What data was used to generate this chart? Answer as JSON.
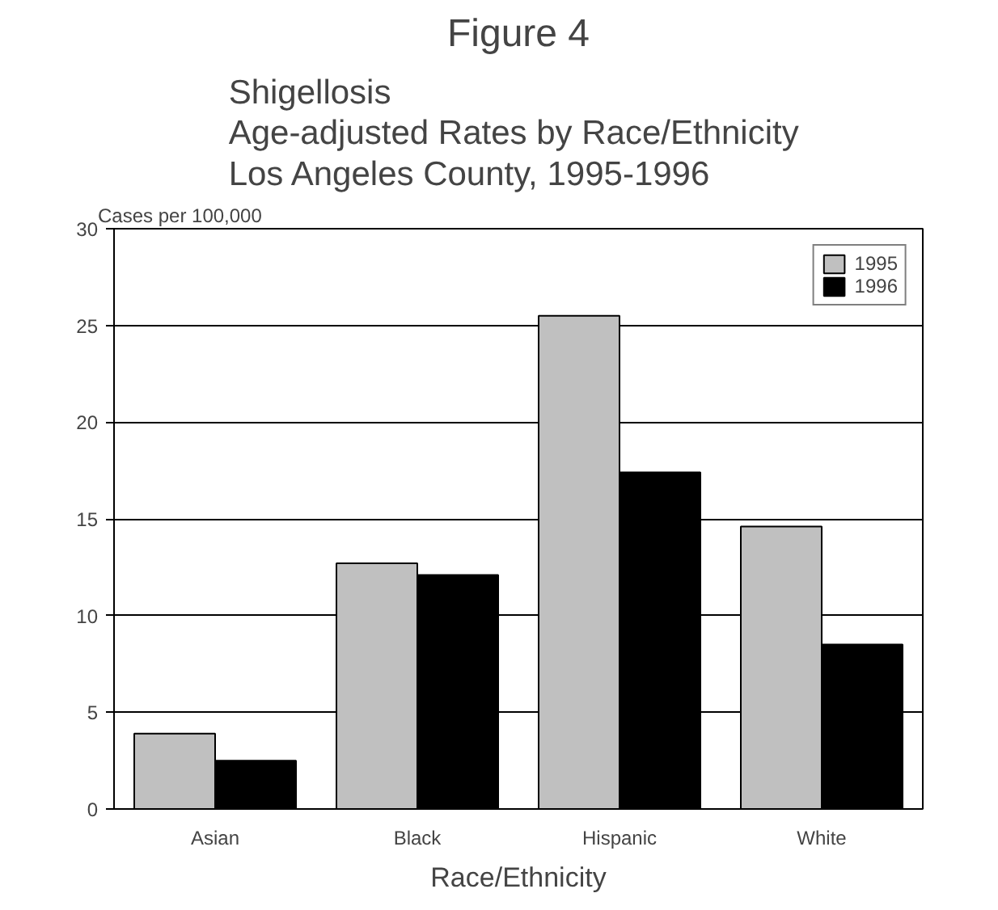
{
  "chart_data": {
    "type": "bar",
    "title": "Figure 4",
    "subtitle": "Shigellosis\nAge-adjusted  Rates by Race/Ethnicity\nLos Angeles County, 1995-1996",
    "xlabel": "Race/Ethnicity",
    "ylabel": "Cases per 100,000",
    "categories": [
      "Asian",
      "Black",
      "Hispanic",
      "White"
    ],
    "series": [
      {
        "name": "1995",
        "color": "#c0c0c0",
        "values": [
          3.9,
          12.7,
          25.5,
          14.6
        ]
      },
      {
        "name": "1996",
        "color": "#000000",
        "values": [
          2.5,
          12.1,
          17.4,
          8.5
        ]
      }
    ],
    "ylim": [
      0,
      30
    ],
    "yticks": [
      0,
      5,
      10,
      15,
      20,
      25,
      30
    ],
    "grid": "y",
    "legend": "top right"
  }
}
